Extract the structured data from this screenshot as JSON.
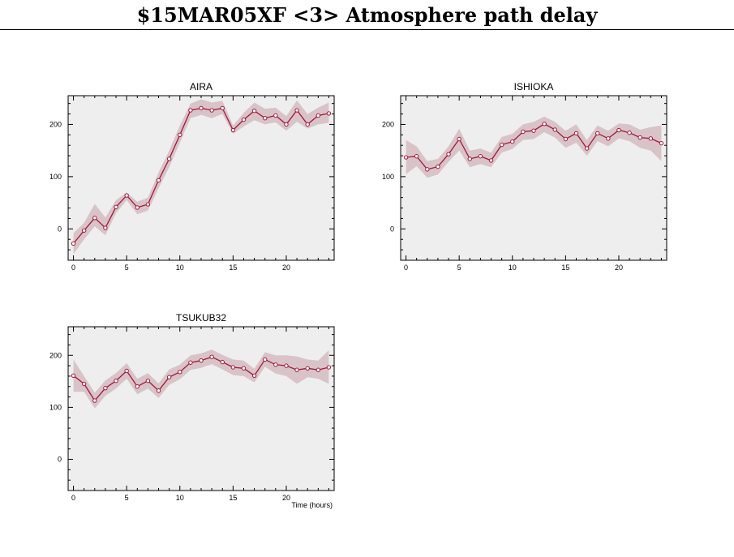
{
  "header": {
    "title": "$15MAR05XF <3>  Atmosphere path delay"
  },
  "colors": {
    "line": "#a3173a",
    "band": "#d8c4c8",
    "panel_bg": "#eeeeee",
    "axis": "#000000"
  },
  "chart_data": [
    {
      "type": "line",
      "title": "AIRA",
      "xlabel": "",
      "ylabel": "",
      "xlim": [
        -0.5,
        24.5
      ],
      "ylim": [
        -60,
        255
      ],
      "xticks": [
        0,
        5,
        10,
        15,
        20
      ],
      "yticks": [
        0,
        100,
        200
      ],
      "grid": false,
      "series": [
        {
          "x": [
            0,
            1,
            2,
            3,
            4,
            5,
            6,
            7,
            8,
            9,
            10,
            11,
            12,
            13,
            14,
            15,
            16,
            17,
            18,
            19,
            20,
            21,
            22,
            23,
            24
          ],
          "values": [
            -28,
            -3,
            21,
            2,
            42,
            64,
            41,
            47,
            93,
            134,
            180,
            227,
            231,
            227,
            231,
            189,
            209,
            226,
            212,
            217,
            200,
            227,
            200,
            217,
            221
          ],
          "band_low": [
            -48,
            -20,
            5,
            -12,
            30,
            55,
            28,
            35,
            78,
            118,
            165,
            212,
            218,
            212,
            220,
            182,
            196,
            208,
            200,
            204,
            188,
            205,
            192,
            200,
            203
          ],
          "band_high": [
            -8,
            12,
            48,
            22,
            55,
            70,
            52,
            60,
            108,
            150,
            198,
            240,
            248,
            242,
            245,
            198,
            222,
            242,
            230,
            232,
            216,
            246,
            220,
            232,
            242
          ]
        }
      ]
    },
    {
      "type": "line",
      "title": "ISHIOKA",
      "xlabel": "",
      "ylabel": "",
      "xlim": [
        -0.5,
        24.5
      ],
      "ylim": [
        -60,
        255
      ],
      "xticks": [
        0,
        5,
        10,
        15,
        20
      ],
      "yticks": [
        0,
        100,
        200
      ],
      "grid": false,
      "series": [
        {
          "x": [
            0,
            1,
            2,
            3,
            4,
            5,
            6,
            7,
            8,
            9,
            10,
            11,
            12,
            13,
            14,
            15,
            16,
            17,
            18,
            19,
            20,
            21,
            22,
            23,
            24
          ],
          "values": [
            137,
            139,
            114,
            119,
            143,
            172,
            134,
            139,
            131,
            161,
            167,
            186,
            188,
            201,
            190,
            172,
            183,
            154,
            183,
            173,
            189,
            184,
            175,
            173,
            164
          ],
          "band_low": [
            105,
            120,
            98,
            104,
            128,
            150,
            118,
            124,
            118,
            146,
            153,
            170,
            172,
            185,
            175,
            155,
            165,
            140,
            168,
            158,
            173,
            168,
            155,
            150,
            130
          ],
          "band_high": [
            170,
            158,
            130,
            134,
            158,
            192,
            150,
            154,
            146,
            176,
            182,
            200,
            205,
            215,
            205,
            188,
            200,
            170,
            198,
            188,
            202,
            200,
            190,
            195,
            198
          ]
        }
      ]
    },
    {
      "type": "line",
      "title": "TSUKUB32",
      "xlabel": "Time (hours)",
      "ylabel": "",
      "xlim": [
        -0.5,
        24.5
      ],
      "ylim": [
        -60,
        255
      ],
      "xticks": [
        0,
        5,
        10,
        15,
        20
      ],
      "yticks": [
        0,
        100,
        200
      ],
      "grid": false,
      "series": [
        {
          "x": [
            0,
            1,
            2,
            3,
            4,
            5,
            6,
            7,
            8,
            9,
            10,
            11,
            12,
            13,
            14,
            15,
            16,
            17,
            18,
            19,
            20,
            21,
            22,
            23,
            24
          ],
          "values": [
            161,
            145,
            113,
            137,
            151,
            170,
            140,
            151,
            132,
            158,
            168,
            186,
            190,
            197,
            187,
            177,
            175,
            161,
            192,
            182,
            180,
            172,
            175,
            172,
            177
          ],
          "band_low": [
            130,
            130,
            98,
            122,
            136,
            155,
            125,
            136,
            118,
            143,
            154,
            172,
            176,
            183,
            173,
            162,
            160,
            148,
            178,
            165,
            160,
            145,
            158,
            155,
            145
          ],
          "band_high": [
            192,
            160,
            128,
            152,
            166,
            185,
            155,
            166,
            146,
            173,
            182,
            200,
            204,
            211,
            201,
            192,
            190,
            174,
            206,
            200,
            200,
            198,
            192,
            190,
            210
          ]
        }
      ]
    }
  ]
}
